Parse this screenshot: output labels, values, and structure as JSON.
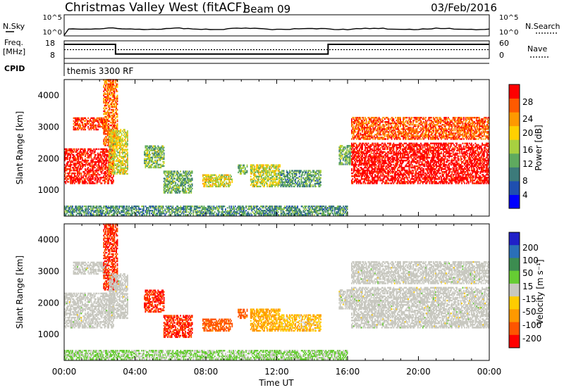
{
  "header": {
    "station": "Christmas Valley West (fitACF)",
    "beam": "Beam 09",
    "date": "03/Feb/2016"
  },
  "panels_top": {
    "nsky": {
      "label": "N.Sky",
      "ticks": [
        "10^5",
        "10^0"
      ]
    },
    "nsearch": {
      "label": "N.Search",
      "ticks": [
        "10^5",
        "10^0"
      ]
    },
    "freq": {
      "label_line1": "Freq.",
      "label_line2": "[MHz]",
      "ticks": [
        "18",
        "8"
      ]
    },
    "nave": {
      "label": "Nave",
      "ticks": [
        "60",
        "0"
      ]
    },
    "cpid": {
      "label": "CPID",
      "value": "themis 3300 RF"
    }
  },
  "power_panel": {
    "ylabel": "Slant Range [km]",
    "yticks": [
      "4000",
      "3000",
      "2000",
      "1000"
    ],
    "colorbar_label": "Power [dB]",
    "colorbar_ticks": [
      "28",
      "24",
      "20",
      "16",
      "12",
      "8",
      "4"
    ],
    "colors": [
      "#0000ff",
      "#1f4fb0",
      "#3c7a7a",
      "#5faa5f",
      "#a8d040",
      "#ffd000",
      "#ff9900",
      "#ff5a00",
      "#ff0000"
    ]
  },
  "velocity_panel": {
    "ylabel": "Slant Range [km]",
    "yticks": [
      "4000",
      "3000",
      "2000",
      "1000"
    ],
    "colorbar_label": "Velocity [m s⁻¹]",
    "colorbar_ticks": [
      "200",
      "100",
      "50",
      "15",
      "-15",
      "-50",
      "-100",
      "-200"
    ],
    "colors": [
      "#2020c8",
      "#2a6fb8",
      "#3c8c50",
      "#66cc33",
      "#c8c8c0",
      "#ffcc00",
      "#ff9900",
      "#ff5500",
      "#ff0000"
    ],
    "ground_scatter_color": "#c8c8c0"
  },
  "xaxis": {
    "ticks": [
      "00:00",
      "04:00",
      "08:00",
      "12:00",
      "16:00",
      "20:00",
      "00:00"
    ],
    "label": "Time UT"
  },
  "chart_data": {
    "type": "heatmap",
    "title": "Christmas Valley West (fitACF)  Beam 09  03/Feb/2016",
    "xlabel": "Time UT",
    "ylabel": "Slant Range [km]",
    "xlim_hours": [
      0,
      24
    ],
    "ylim_km": [
      180,
      4500
    ],
    "power_range_db": [
      0,
      30
    ],
    "velocity_range_ms": [
      -250,
      250
    ],
    "frequency_mhz": [
      {
        "from_h": 0,
        "to_h": 2.9,
        "value": 16
      },
      {
        "from_h": 2.9,
        "to_h": 14.9,
        "value": 10.5
      },
      {
        "from_h": 14.9,
        "to_h": 24,
        "value": 16
      }
    ],
    "nave_level": 30,
    "scatter_regions": [
      {
        "from_h": 0.0,
        "to_h": 2.8,
        "range_km": [
          1200,
          2300
        ],
        "power_db": 29,
        "velocity_ms": 0,
        "ground_scatter": true
      },
      {
        "from_h": 0.5,
        "to_h": 2.4,
        "range_km": [
          2900,
          3300
        ],
        "power_db": 27,
        "velocity_ms": 0,
        "ground_scatter": true
      },
      {
        "from_h": 2.2,
        "to_h": 3.0,
        "range_km": [
          2400,
          4500
        ],
        "power_db": 24,
        "velocity_ms": -200,
        "ground_scatter": false
      },
      {
        "from_h": 2.5,
        "to_h": 3.6,
        "range_km": [
          1500,
          2900
        ],
        "power_db": 17,
        "velocity_ms": 0,
        "ground_scatter": true
      },
      {
        "from_h": 4.5,
        "to_h": 5.6,
        "range_km": [
          1700,
          2400
        ],
        "power_db": 13,
        "velocity_ms": -200,
        "ground_scatter": false
      },
      {
        "from_h": 5.6,
        "to_h": 7.2,
        "range_km": [
          900,
          1600
        ],
        "power_db": 12,
        "velocity_ms": -200,
        "ground_scatter": false
      },
      {
        "from_h": 7.8,
        "to_h": 9.5,
        "range_km": [
          1100,
          1500
        ],
        "power_db": 17,
        "velocity_ms": -120,
        "ground_scatter": false
      },
      {
        "from_h": 9.8,
        "to_h": 10.3,
        "range_km": [
          1500,
          1800
        ],
        "power_db": 12,
        "velocity_ms": -120,
        "ground_scatter": false
      },
      {
        "from_h": 10.5,
        "to_h": 12.2,
        "range_km": [
          1100,
          1800
        ],
        "power_db": 16,
        "velocity_ms": -60,
        "ground_scatter": false
      },
      {
        "from_h": 12.2,
        "to_h": 14.5,
        "range_km": [
          1100,
          1600
        ],
        "power_db": 11,
        "velocity_ms": -40,
        "ground_scatter": false
      },
      {
        "from_h": 15.5,
        "to_h": 16.2,
        "range_km": [
          1800,
          2400
        ],
        "power_db": 12,
        "velocity_ms": 0,
        "ground_scatter": true
      },
      {
        "from_h": 16.2,
        "to_h": 24.0,
        "range_km": [
          1200,
          2500
        ],
        "power_db": 30,
        "velocity_ms": 0,
        "ground_scatter": true
      },
      {
        "from_h": 16.2,
        "to_h": 24.0,
        "range_km": [
          2600,
          3300
        ],
        "power_db": 25,
        "velocity_ms": 0,
        "ground_scatter": true
      },
      {
        "from_h": 0.0,
        "to_h": 16.0,
        "range_km": [
          200,
          500
        ],
        "power_db": 10,
        "velocity_ms": 20,
        "ground_scatter": false
      }
    ]
  }
}
